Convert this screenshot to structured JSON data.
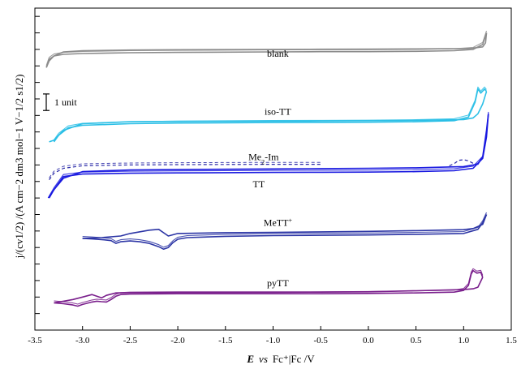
{
  "chart_data": {
    "type": "line",
    "title": "",
    "xlim": [
      -3.5,
      1.5
    ],
    "x_ticks": [
      "-3.5",
      "-3.0",
      "-2.5",
      "-2.0",
      "-1.5",
      "-1.0",
      "-0.5",
      "0.0",
      "0.5",
      "1.0",
      "1.5"
    ],
    "x_tick_values": [
      -3.5,
      -3.0,
      -2.5,
      -2.0,
      -1.5,
      -1.0,
      -0.5,
      0.0,
      0.5,
      1.0,
      1.5
    ],
    "xlabel": {
      "E": "E",
      "vs": "vs",
      "rest": "Fc⁺|Fc /V"
    },
    "ylabel": "j/(cv1/2) /(A cm−2 dm3 mol−1 V−1/2 s1/2)",
    "y_tick_count": 19,
    "scale_bar": {
      "label": "1 unit",
      "units": 1
    },
    "series": [
      {
        "name": "blank",
        "color": "#8c8c8c",
        "label": "blank",
        "label_x": -0.95,
        "label_offset": 0.55,
        "forward": [
          [
            -3.38,
            -0.1
          ],
          [
            -3.35,
            0.4
          ],
          [
            -3.3,
            0.6
          ],
          [
            -3.2,
            0.7
          ],
          [
            -3.0,
            0.75
          ],
          [
            -2.5,
            0.8
          ],
          [
            -2.0,
            0.82
          ],
          [
            -1.0,
            0.85
          ],
          [
            -0.5,
            0.86
          ],
          [
            0.0,
            0.86
          ],
          [
            0.5,
            0.88
          ],
          [
            0.9,
            0.92
          ],
          [
            1.1,
            1.0
          ],
          [
            1.2,
            1.3
          ],
          [
            1.24,
            2.0
          ]
        ],
        "reverse": [
          [
            1.24,
            2.0
          ],
          [
            1.23,
            1.4
          ],
          [
            1.2,
            1.15
          ],
          [
            1.1,
            1.08
          ],
          [
            1.0,
            1.05
          ],
          [
            0.5,
            1.03
          ],
          [
            0.0,
            1.02
          ],
          [
            -0.5,
            1.01
          ],
          [
            -1.0,
            1.0
          ],
          [
            -2.0,
            0.98
          ],
          [
            -2.5,
            0.96
          ],
          [
            -3.0,
            0.92
          ],
          [
            -3.2,
            0.85
          ],
          [
            -3.3,
            0.6
          ],
          [
            -3.35,
            0.3
          ],
          [
            -3.38,
            -0.1
          ]
        ]
      },
      {
        "name": "iso-TT",
        "color": "#2bbfe6",
        "label": "iso-TT",
        "label_x": -0.95,
        "label_offset": 0.45,
        "forward": [
          [
            -3.3,
            -1.2
          ],
          [
            -3.25,
            -0.8
          ],
          [
            -3.15,
            -0.35
          ],
          [
            -3.0,
            -0.2
          ],
          [
            -2.5,
            -0.1
          ],
          [
            -2.0,
            -0.06
          ],
          [
            -1.0,
            -0.03
          ],
          [
            -0.5,
            -0.02
          ],
          [
            0.0,
            -0.01
          ],
          [
            0.5,
            0.02
          ],
          [
            0.9,
            0.08
          ],
          [
            1.05,
            0.3
          ],
          [
            1.12,
            1.2
          ],
          [
            1.15,
            2.0
          ],
          [
            1.18,
            1.75
          ],
          [
            1.22,
            2.0
          ],
          [
            1.24,
            1.85
          ]
        ],
        "reverse": [
          [
            1.24,
            1.85
          ],
          [
            1.2,
            1.1
          ],
          [
            1.15,
            0.5
          ],
          [
            1.1,
            0.25
          ],
          [
            1.0,
            0.15
          ],
          [
            0.5,
            0.1
          ],
          [
            0.0,
            0.08
          ],
          [
            -0.5,
            0.07
          ],
          [
            -1.0,
            0.06
          ],
          [
            -2.0,
            0.04
          ],
          [
            -2.5,
            0.02
          ],
          [
            -3.0,
            -0.1
          ],
          [
            -3.2,
            -0.5
          ],
          [
            -3.3,
            -1.1
          ],
          [
            -3.35,
            -1.2
          ]
        ]
      },
      {
        "name": "Me2-Im",
        "color": "#2a2aa8",
        "label": "Me2-Im",
        "label_x": -1.1,
        "label_offset": 0.6,
        "dashed": true,
        "forward": [
          [
            -3.35,
            -0.6
          ],
          [
            -3.3,
            -0.2
          ],
          [
            -3.2,
            0.1
          ],
          [
            -3.0,
            0.25
          ],
          [
            -2.5,
            0.3
          ],
          [
            -2.0,
            0.32
          ],
          [
            -1.5,
            0.33
          ],
          [
            -1.0,
            0.34
          ],
          [
            -0.5,
            0.34
          ]
        ],
        "reverse": [
          [
            0.85,
            0.25
          ],
          [
            0.9,
            0.38
          ],
          [
            0.95,
            0.58
          ],
          [
            1.0,
            0.62
          ],
          [
            1.05,
            0.55
          ],
          [
            1.1,
            0.4
          ],
          [
            1.15,
            0.35
          ]
        ]
      },
      {
        "name": "TT",
        "color": "#1a1ae0",
        "label": "TT",
        "label_x": -1.15,
        "label_offset": -0.85,
        "forward": [
          [
            -3.35,
            -1.5
          ],
          [
            -3.3,
            -1.0
          ],
          [
            -3.2,
            -0.2
          ],
          [
            -3.0,
            -0.05
          ],
          [
            -2.5,
            0.0
          ],
          [
            -2.0,
            0.02
          ],
          [
            -1.0,
            0.05
          ],
          [
            -0.5,
            0.06
          ],
          [
            0.0,
            0.07
          ],
          [
            0.5,
            0.1
          ],
          [
            0.9,
            0.15
          ],
          [
            1.1,
            0.3
          ],
          [
            1.2,
            0.9
          ],
          [
            1.24,
            2.2
          ],
          [
            1.26,
            3.6
          ]
        ],
        "reverse": [
          [
            1.26,
            3.6
          ],
          [
            1.24,
            2.6
          ],
          [
            1.2,
            1.0
          ],
          [
            1.15,
            0.55
          ],
          [
            1.0,
            0.4
          ],
          [
            0.5,
            0.33
          ],
          [
            0.0,
            0.3
          ],
          [
            -0.5,
            0.28
          ],
          [
            -1.0,
            0.26
          ],
          [
            -2.0,
            0.22
          ],
          [
            -2.5,
            0.2
          ],
          [
            -3.0,
            0.1
          ],
          [
            -3.2,
            -0.3
          ],
          [
            -3.3,
            -1.0
          ],
          [
            -3.36,
            -1.5
          ]
        ]
      },
      {
        "name": "MeTT+",
        "color": "#2c35a5",
        "label": "MeTT+",
        "label_x": -0.95,
        "label_offset": 0.5,
        "forward": [
          [
            -3.0,
            -0.25
          ],
          [
            -2.9,
            -0.28
          ],
          [
            -2.8,
            -0.32
          ],
          [
            -2.7,
            -0.38
          ],
          [
            -2.65,
            -0.55
          ],
          [
            -2.6,
            -0.45
          ],
          [
            -2.5,
            -0.4
          ],
          [
            -2.4,
            -0.45
          ],
          [
            -2.3,
            -0.55
          ],
          [
            -2.2,
            -0.75
          ],
          [
            -2.15,
            -0.9
          ],
          [
            -2.1,
            -0.8
          ],
          [
            -2.05,
            -0.5
          ],
          [
            -2.0,
            -0.3
          ],
          [
            -1.9,
            -0.2
          ],
          [
            -1.5,
            -0.12
          ],
          [
            -1.0,
            -0.08
          ],
          [
            -0.5,
            -0.06
          ],
          [
            0.0,
            -0.04
          ],
          [
            0.5,
            0.0
          ],
          [
            1.0,
            0.05
          ],
          [
            1.15,
            0.3
          ],
          [
            1.2,
            0.7
          ],
          [
            1.24,
            1.2
          ]
        ],
        "reverse": [
          [
            1.24,
            1.2
          ],
          [
            1.2,
            0.6
          ],
          [
            1.1,
            0.35
          ],
          [
            1.0,
            0.28
          ],
          [
            0.5,
            0.22
          ],
          [
            0.0,
            0.18
          ],
          [
            -0.5,
            0.15
          ],
          [
            -1.0,
            0.12
          ],
          [
            -1.5,
            0.1
          ],
          [
            -2.0,
            0.05
          ],
          [
            -2.1,
            -0.1
          ],
          [
            -2.2,
            0.3
          ],
          [
            -2.3,
            0.25
          ],
          [
            -2.5,
            0.05
          ],
          [
            -2.6,
            -0.1
          ],
          [
            -2.8,
            -0.2
          ],
          [
            -3.0,
            -0.25
          ]
        ]
      },
      {
        "name": "pyTT",
        "color": "#7a1f8c",
        "label": "pyTT",
        "label_x": -0.95,
        "label_offset": 0.45,
        "forward": [
          [
            -3.3,
            -0.55
          ],
          [
            -3.2,
            -0.6
          ],
          [
            -3.1,
            -0.68
          ],
          [
            -3.05,
            -0.75
          ],
          [
            -3.0,
            -0.65
          ],
          [
            -2.9,
            -0.5
          ],
          [
            -2.85,
            -0.45
          ],
          [
            -2.8,
            -0.48
          ],
          [
            -2.75,
            -0.5
          ],
          [
            -2.7,
            -0.35
          ],
          [
            -2.65,
            -0.15
          ],
          [
            -2.6,
            -0.05
          ],
          [
            -2.5,
            -0.02
          ],
          [
            -2.0,
            0.0
          ],
          [
            -1.0,
            0.0
          ],
          [
            -0.5,
            0.0
          ],
          [
            0.0,
            0.02
          ],
          [
            0.5,
            0.05
          ],
          [
            0.9,
            0.1
          ],
          [
            1.0,
            0.2
          ],
          [
            1.05,
            0.5
          ],
          [
            1.08,
            1.2
          ],
          [
            1.1,
            1.4
          ],
          [
            1.14,
            1.25
          ],
          [
            1.18,
            1.3
          ],
          [
            1.2,
            1.0
          ]
        ],
        "reverse": [
          [
            1.2,
            1.0
          ],
          [
            1.15,
            0.4
          ],
          [
            1.1,
            0.3
          ],
          [
            1.0,
            0.25
          ],
          [
            0.5,
            0.18
          ],
          [
            0.0,
            0.12
          ],
          [
            -0.5,
            0.1
          ],
          [
            -1.0,
            0.09
          ],
          [
            -2.0,
            0.08
          ],
          [
            -2.5,
            0.07
          ],
          [
            -2.65,
            0.05
          ],
          [
            -2.75,
            -0.1
          ],
          [
            -2.8,
            -0.25
          ],
          [
            -2.9,
            -0.05
          ],
          [
            -3.0,
            -0.2
          ],
          [
            -3.1,
            -0.35
          ],
          [
            -3.2,
            -0.45
          ],
          [
            -3.3,
            -0.55
          ]
        ]
      }
    ],
    "offsets": {
      "blank": 16.0,
      "iso-TT": 12.6,
      "Me2-Im": 9.7,
      "TT": 9.5,
      "MeTT+": 5.8,
      "pyTT": 2.2
    },
    "ylim": [
      0,
      19.5
    ]
  }
}
